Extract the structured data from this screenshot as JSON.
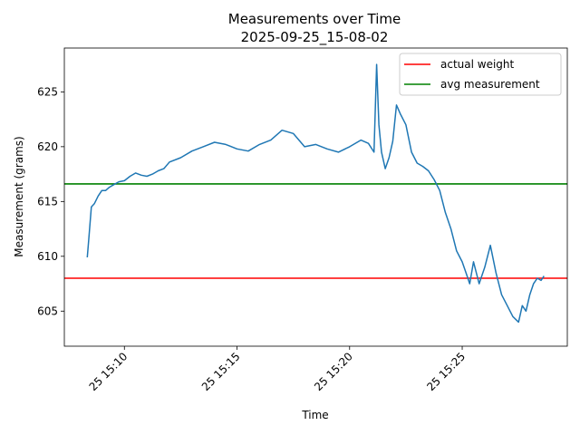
{
  "chart_data": {
    "type": "line",
    "title": "Measurements over Time",
    "subtitle": "2025-09-25_15-08-02",
    "xlabel": "Time",
    "ylabel": "Measurement (grams)",
    "xlim": [
      "2025-09-25 15:07:20",
      "2025-09-25 15:29:40"
    ],
    "ylim": [
      601.8,
      629.0
    ],
    "x_ticks": [
      "2025-09-25 15:10:00",
      "2025-09-25 15:15:00",
      "2025-09-25 15:20:00",
      "2025-09-25 15:25:00"
    ],
    "x_tick_labels": [
      "25 15:10",
      "25 15:15",
      "25 15:20",
      "25 15:25"
    ],
    "y_ticks": [
      605,
      610,
      615,
      620,
      625
    ],
    "y_tick_labels": [
      "605",
      "610",
      "615",
      "620",
      "625"
    ],
    "grid": false,
    "legend_position": "top-right",
    "series": [
      {
        "name": "",
        "color": "#1f77b4",
        "x": [
          "2025-09-25 15:08:21",
          "2025-09-25 15:08:25",
          "2025-09-25 15:08:32",
          "2025-09-25 15:08:40",
          "2025-09-25 15:08:50",
          "2025-09-25 15:09:00",
          "2025-09-25 15:09:10",
          "2025-09-25 15:09:20",
          "2025-09-25 15:09:30",
          "2025-09-25 15:09:45",
          "2025-09-25 15:10:00",
          "2025-09-25 15:10:15",
          "2025-09-25 15:10:30",
          "2025-09-25 15:10:45",
          "2025-09-25 15:11:00",
          "2025-09-25 15:11:15",
          "2025-09-25 15:11:30",
          "2025-09-25 15:11:45",
          "2025-09-25 15:12:00",
          "2025-09-25 15:12:30",
          "2025-09-25 15:13:00",
          "2025-09-25 15:13:30",
          "2025-09-25 15:14:00",
          "2025-09-25 15:14:30",
          "2025-09-25 15:15:00",
          "2025-09-25 15:15:30",
          "2025-09-25 15:16:00",
          "2025-09-25 15:16:30",
          "2025-09-25 15:17:00",
          "2025-09-25 15:17:30",
          "2025-09-25 15:18:00",
          "2025-09-25 15:18:30",
          "2025-09-25 15:19:00",
          "2025-09-25 15:19:30",
          "2025-09-25 15:20:00",
          "2025-09-25 15:20:30",
          "2025-09-25 15:20:50",
          "2025-09-25 15:21:05",
          "2025-09-25 15:21:12",
          "2025-09-25 15:21:18",
          "2025-09-25 15:21:25",
          "2025-09-25 15:21:35",
          "2025-09-25 15:21:45",
          "2025-09-25 15:21:55",
          "2025-09-25 15:22:05",
          "2025-09-25 15:22:15",
          "2025-09-25 15:22:30",
          "2025-09-25 15:22:45",
          "2025-09-25 15:23:00",
          "2025-09-25 15:23:15",
          "2025-09-25 15:23:30",
          "2025-09-25 15:23:45",
          "2025-09-25 15:24:00",
          "2025-09-25 15:24:15",
          "2025-09-25 15:24:30",
          "2025-09-25 15:24:45",
          "2025-09-25 15:25:00",
          "2025-09-25 15:25:10",
          "2025-09-25 15:25:20",
          "2025-09-25 15:25:30",
          "2025-09-25 15:25:45",
          "2025-09-25 15:26:00",
          "2025-09-25 15:26:15",
          "2025-09-25 15:26:30",
          "2025-09-25 15:26:45",
          "2025-09-25 15:27:00",
          "2025-09-25 15:27:15",
          "2025-09-25 15:27:30",
          "2025-09-25 15:27:40",
          "2025-09-25 15:27:50",
          "2025-09-25 15:28:00",
          "2025-09-25 15:28:10",
          "2025-09-25 15:28:20",
          "2025-09-25 15:28:30",
          "2025-09-25 15:28:38"
        ],
        "y": [
          609.9,
          611.5,
          614.5,
          614.8,
          615.5,
          616.0,
          616.0,
          616.3,
          616.5,
          616.8,
          616.9,
          617.3,
          617.6,
          617.4,
          617.3,
          617.5,
          617.8,
          618.0,
          618.6,
          619.0,
          619.6,
          620.0,
          620.4,
          620.2,
          619.8,
          619.6,
          620.2,
          620.6,
          621.5,
          621.2,
          620.0,
          620.2,
          619.8,
          619.5,
          620.0,
          620.6,
          620.3,
          619.5,
          627.5,
          622.0,
          619.5,
          618.0,
          619.0,
          620.5,
          623.8,
          623.0,
          622.0,
          619.5,
          618.5,
          618.2,
          617.8,
          617.0,
          616.0,
          614.0,
          612.5,
          610.5,
          609.5,
          608.5,
          607.5,
          609.5,
          607.5,
          609.0,
          611.0,
          608.5,
          606.5,
          605.5,
          604.5,
          604.0,
          605.5,
          605.0,
          606.5,
          607.5,
          608.0,
          607.8,
          608.2
        ]
      }
    ],
    "hlines": [
      {
        "name": "actual weight",
        "y": 608.0,
        "color": "#ff0000"
      },
      {
        "name": "avg measurement",
        "y": 616.6,
        "color": "#008000"
      }
    ]
  }
}
